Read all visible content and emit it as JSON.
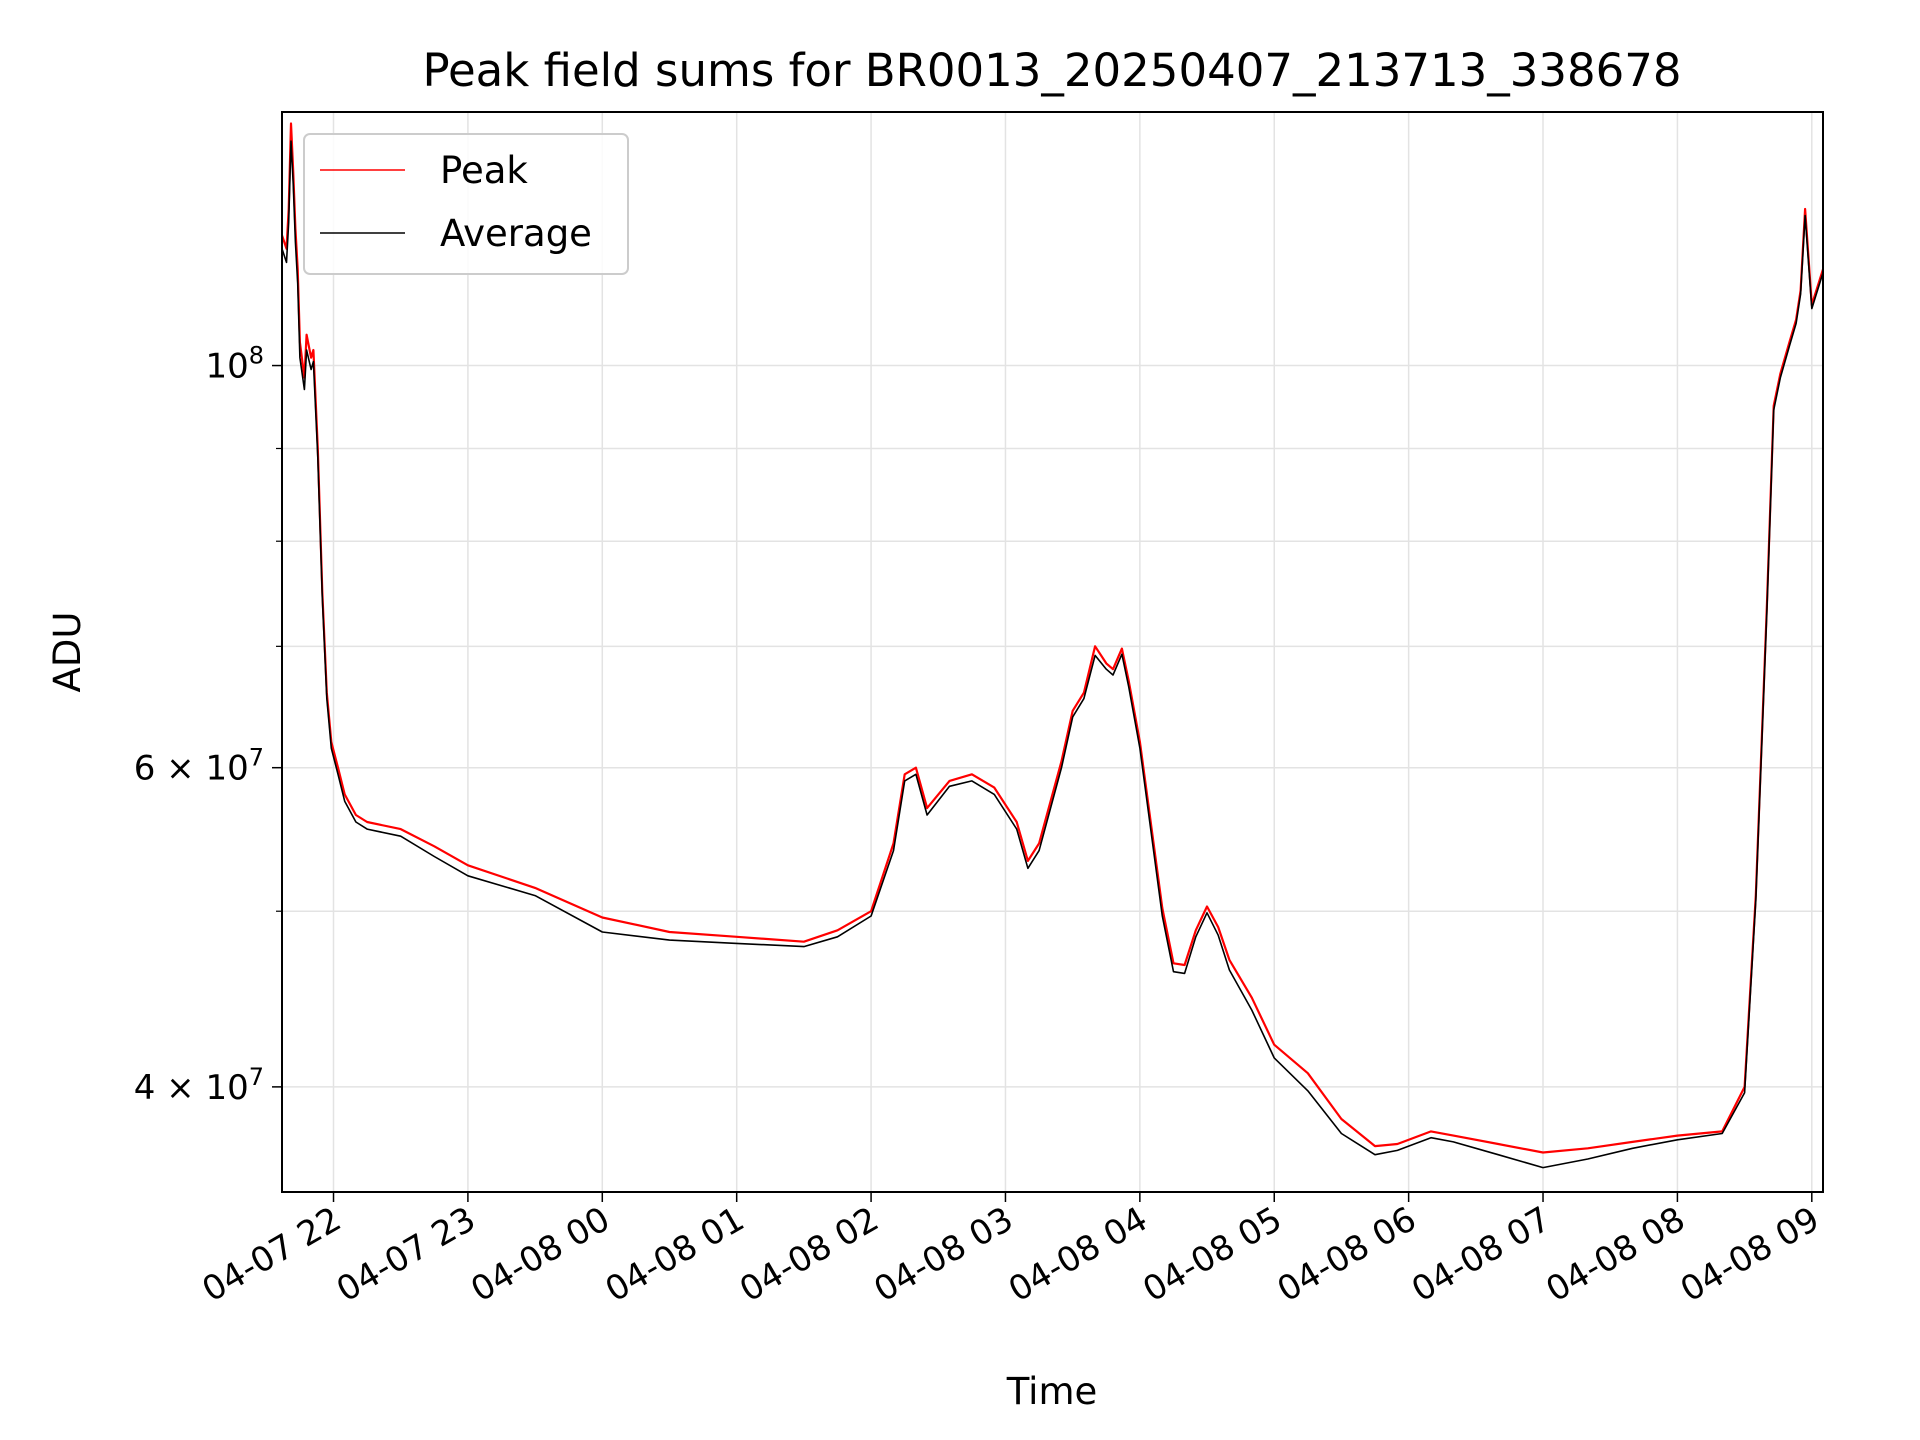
{
  "chart_data": {
    "type": "line",
    "title": "Peak field sums for BR0013_20250407_213713_338678",
    "xlabel": "Time",
    "ylabel": "ADU",
    "y_scale": "log",
    "ylim": [
      35000000,
      138000000
    ],
    "xlim": [
      "04-07 21:37",
      "04-08 09:05"
    ],
    "grid": true,
    "legend_position": "top-left",
    "x_ticks": [
      "04-07 22",
      "04-07 23",
      "04-08 00",
      "04-08 01",
      "04-08 02",
      "04-08 03",
      "04-08 04",
      "04-08 05",
      "04-08 06",
      "04-08 07",
      "04-08 08",
      "04-08 09"
    ],
    "y_ticks": [
      {
        "value": 100000000,
        "mantissa": "",
        "exponent": "8"
      },
      {
        "value": 60000000,
        "mantissa": "6",
        "exponent": "7"
      },
      {
        "value": 40000000,
        "mantissa": "4",
        "exponent": "7"
      }
    ],
    "y_minor_ticks": [
      50000000,
      70000000,
      80000000,
      90000000
    ],
    "series": [
      {
        "name": "Peak",
        "color": "#ff0000",
        "x": [
          "04-07 21:37",
          "04-07 21:39",
          "04-07 21:40",
          "04-07 21:41",
          "04-07 21:42",
          "04-07 21:43",
          "04-07 21:44",
          "04-07 21:45",
          "04-07 21:47",
          "04-07 21:48",
          "04-07 21:50",
          "04-07 21:51",
          "04-07 21:53",
          "04-07 21:55",
          "04-07 21:57",
          "04-07 21:59",
          "04-07 22:02",
          "04-07 22:05",
          "04-07 22:10",
          "04-07 22:15",
          "04-07 22:30",
          "04-07 22:45",
          "04-07 23:00",
          "04-07 23:30",
          "04-08 00:00",
          "04-08 00:30",
          "04-08 01:00",
          "04-08 01:30",
          "04-08 01:45",
          "04-08 02:00",
          "04-08 02:10",
          "04-08 02:15",
          "04-08 02:20",
          "04-08 02:25",
          "04-08 02:35",
          "04-08 02:45",
          "04-08 02:55",
          "04-08 03:05",
          "04-08 03:10",
          "04-08 03:15",
          "04-08 03:25",
          "04-08 03:30",
          "04-08 03:35",
          "04-08 03:40",
          "04-08 03:45",
          "04-08 03:48",
          "04-08 03:52",
          "04-08 03:55",
          "04-08 04:00",
          "04-08 04:10",
          "04-08 04:15",
          "04-08 04:20",
          "04-08 04:25",
          "04-08 04:30",
          "04-08 04:35",
          "04-08 04:40",
          "04-08 04:50",
          "04-08 05:00",
          "04-08 05:15",
          "04-08 05:30",
          "04-08 05:45",
          "04-08 05:55",
          "04-08 06:10",
          "04-08 06:20",
          "04-08 06:40",
          "04-08 07:00",
          "04-08 07:20",
          "04-08 07:40",
          "04-08 08:00",
          "04-08 08:20",
          "04-08 08:30",
          "04-08 08:35",
          "04-08 08:40",
          "04-08 08:43",
          "04-08 08:46",
          "04-08 08:50",
          "04-08 08:53",
          "04-08 08:55",
          "04-08 08:57",
          "04-08 09:00",
          "04-08 09:05"
        ],
        "y": [
          118000000,
          116000000,
          122000000,
          136000000,
          128000000,
          119000000,
          113000000,
          103000000,
          98500000,
          104000000,
          101000000,
          102000000,
          90000000,
          75000000,
          66000000,
          62000000,
          60000000,
          58000000,
          56500000,
          56000000,
          55500000,
          54300000,
          53000000,
          51500000,
          49600000,
          48700000,
          48400000,
          48100000,
          48800000,
          50000000,
          54500000,
          59500000,
          60000000,
          57000000,
          59000000,
          59500000,
          58500000,
          56000000,
          53300000,
          54500000,
          60500000,
          64500000,
          66000000,
          70000000,
          68500000,
          68000000,
          69800000,
          67000000,
          62000000,
          50200000,
          46800000,
          46700000,
          48800000,
          50300000,
          49000000,
          47000000,
          44800000,
          42200000,
          40700000,
          38400000,
          37100000,
          37200000,
          37800000,
          37600000,
          37200000,
          36800000,
          37000000,
          37300000,
          37600000,
          37800000,
          40000000,
          51000000,
          74000000,
          95000000,
          99000000,
          103000000,
          106000000,
          110000000,
          122000000,
          108000000,
          113000000
        ]
      },
      {
        "name": "Average",
        "color": "#000000",
        "x": [
          "04-07 21:37",
          "04-07 21:39",
          "04-07 21:40",
          "04-07 21:41",
          "04-07 21:42",
          "04-07 21:43",
          "04-07 21:44",
          "04-07 21:45",
          "04-07 21:47",
          "04-07 21:48",
          "04-07 21:50",
          "04-07 21:51",
          "04-07 21:53",
          "04-07 21:55",
          "04-07 21:57",
          "04-07 21:59",
          "04-07 22:02",
          "04-07 22:05",
          "04-07 22:10",
          "04-07 22:15",
          "04-07 22:30",
          "04-07 22:45",
          "04-07 23:00",
          "04-07 23:30",
          "04-08 00:00",
          "04-08 00:30",
          "04-08 01:00",
          "04-08 01:30",
          "04-08 01:45",
          "04-08 02:00",
          "04-08 02:10",
          "04-08 02:15",
          "04-08 02:20",
          "04-08 02:25",
          "04-08 02:35",
          "04-08 02:45",
          "04-08 02:55",
          "04-08 03:05",
          "04-08 03:10",
          "04-08 03:15",
          "04-08 03:25",
          "04-08 03:30",
          "04-08 03:35",
          "04-08 03:40",
          "04-08 03:45",
          "04-08 03:48",
          "04-08 03:52",
          "04-08 03:55",
          "04-08 04:00",
          "04-08 04:10",
          "04-08 04:15",
          "04-08 04:20",
          "04-08 04:25",
          "04-08 04:30",
          "04-08 04:35",
          "04-08 04:40",
          "04-08 04:50",
          "04-08 05:00",
          "04-08 05:15",
          "04-08 05:30",
          "04-08 05:45",
          "04-08 05:55",
          "04-08 06:10",
          "04-08 06:20",
          "04-08 06:40",
          "04-08 07:00",
          "04-08 07:20",
          "04-08 07:40",
          "04-08 08:00",
          "04-08 08:20",
          "04-08 08:30",
          "04-08 08:35",
          "04-08 08:40",
          "04-08 08:43",
          "04-08 08:46",
          "04-08 08:50",
          "04-08 08:53",
          "04-08 08:55",
          "04-08 08:57",
          "04-08 09:00",
          "04-08 09:05"
        ],
        "y": [
          116000000,
          114000000,
          120000000,
          133000000,
          126000000,
          117000000,
          111000000,
          101000000,
          97000000,
          102000000,
          99500000,
          100500000,
          89000000,
          74500000,
          65500000,
          61500000,
          59500000,
          57500000,
          56000000,
          55500000,
          55000000,
          53600000,
          52300000,
          51000000,
          48700000,
          48200000,
          48000000,
          47800000,
          48400000,
          49700000,
          54000000,
          59000000,
          59500000,
          56500000,
          58600000,
          59000000,
          58000000,
          55500000,
          52800000,
          54000000,
          60000000,
          64000000,
          65500000,
          69200000,
          68000000,
          67500000,
          69300000,
          66500000,
          61500000,
          49700000,
          46300000,
          46200000,
          48400000,
          49900000,
          48500000,
          46400000,
          44100000,
          41500000,
          39800000,
          37700000,
          36700000,
          36900000,
          37500000,
          37300000,
          36700000,
          36100000,
          36500000,
          37000000,
          37400000,
          37700000,
          39700000,
          50700000,
          73500000,
          94500000,
          98500000,
          102500000,
          105500000,
          109500000,
          121000000,
          107500000,
          112500000
        ]
      }
    ]
  }
}
